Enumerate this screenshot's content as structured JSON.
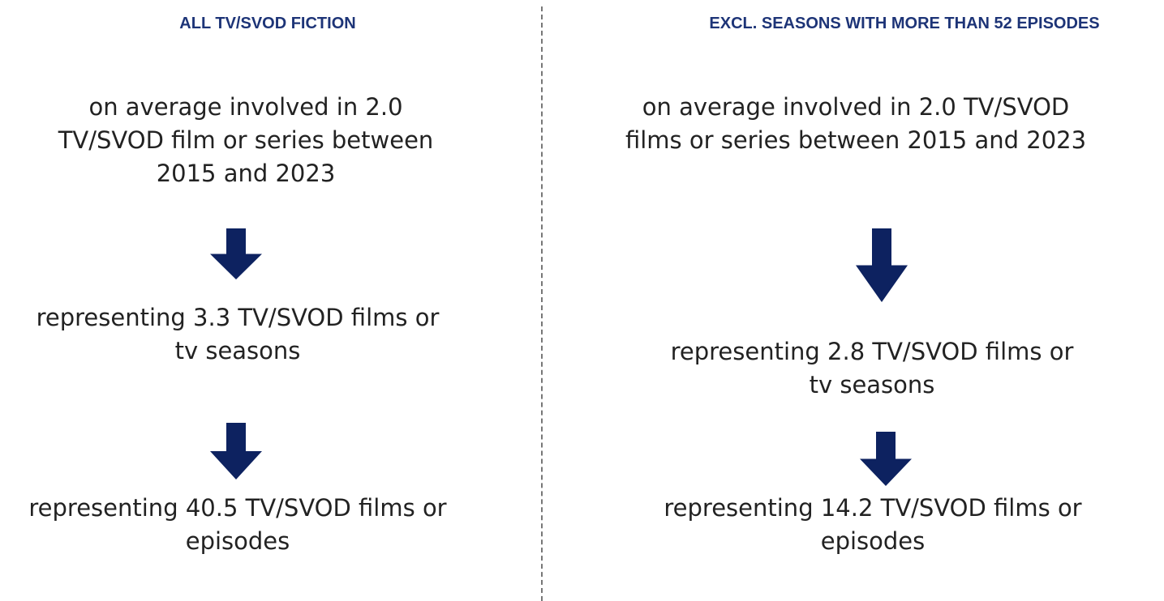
{
  "columns": [
    {
      "header": "ALL TV/SVOD FICTION",
      "steps": [
        [
          "on average involved in 2.0",
          "TV/SVOD film or series between",
          "2015 and 2023"
        ],
        [
          "representing 3.3 TV/SVOD films or",
          "tv seasons"
        ],
        [
          "representing 40.5 TV/SVOD films or",
          "episodes"
        ]
      ]
    },
    {
      "header": "EXCL. SEASONS WITH MORE THAN 52 EPISODES",
      "steps": [
        [
          "on average involved in 2.0 TV/SVOD",
          "films or series between 2015 and 2023"
        ],
        [
          "representing 2.8 TV/SVOD films or",
          "tv seasons"
        ],
        [
          "representing 14.2 TV/SVOD films or",
          "episodes"
        ]
      ]
    }
  ]
}
